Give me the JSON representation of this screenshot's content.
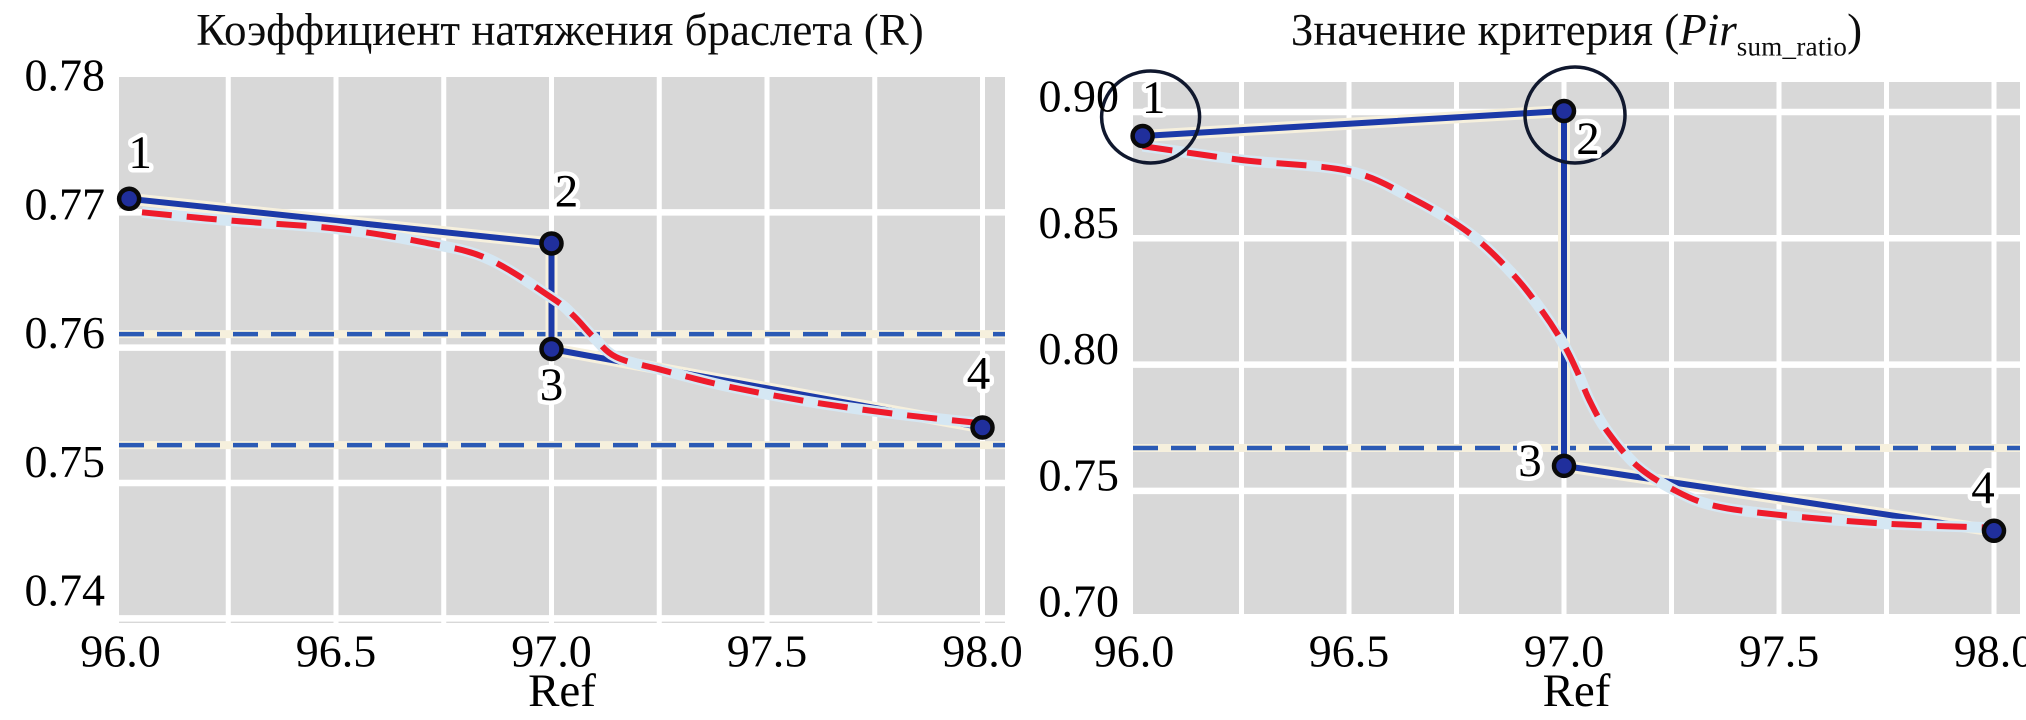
{
  "figure": {
    "background": "#ffffff",
    "panel_color": "#d8d8d8",
    "grid_color": "#ffffff",
    "colors": {
      "path_line": "#1c3aa8",
      "path_halo": "#f6f0dd",
      "marker_fill": "#202f9c",
      "marker_edge": "#0a0a0a",
      "model_curve": "#ee1b2b",
      "model_halo": "#d5e7f3",
      "threshold_line": "#2b5ab4",
      "highlight_circle": "#10182e"
    }
  },
  "chart_data": [
    {
      "type": "line",
      "title": "Коэффициент натяжения браслета (R)",
      "title_parts": {
        "pre": "Коэффициент натяжения браслета (R)",
        "italic": "",
        "sub": "",
        "post": ""
      },
      "xlabel": "Ref",
      "xlim": [
        95.96,
        98.07
      ],
      "ylim": [
        0.7397,
        0.78
      ],
      "x_ticks": [
        96.0,
        96.5,
        97.0,
        97.5,
        98.0
      ],
      "x_tick_labels": [
        "96.0",
        "96.5",
        "97.0",
        "97.5",
        "98.0"
      ],
      "y_ticks": [
        0.78,
        0.77,
        0.76,
        0.75,
        0.74
      ],
      "y_tick_labels": [
        "0.78",
        "0.77",
        "0.76",
        "0.75",
        "0.74"
      ],
      "x_minor_grid_step": 0.25,
      "grid": true,
      "legend": false,
      "series": [
        {
          "name": "optimization steps",
          "style": "solid_line_with_markers",
          "x": [
            96.02,
            97.0,
            97.0,
            98.0
          ],
          "y": [
            0.771,
            0.7677,
            0.7599,
            0.7541
          ],
          "point_labels": [
            "1",
            "2",
            "3",
            "4"
          ]
        },
        {
          "name": "model curve",
          "style": "dashed_curve",
          "points": [
            [
              96.05,
              0.77
            ],
            [
              96.25,
              0.7694
            ],
            [
              96.5,
              0.7688
            ],
            [
              96.7,
              0.7678
            ],
            [
              96.85,
              0.7666
            ],
            [
              97.0,
              0.7637
            ],
            [
              97.05,
              0.7624
            ],
            [
              97.1,
              0.7607
            ],
            [
              97.15,
              0.7593
            ],
            [
              97.25,
              0.7584
            ],
            [
              97.4,
              0.7572
            ],
            [
              97.6,
              0.756
            ],
            [
              97.8,
              0.7551
            ],
            [
              98.0,
              0.7544
            ]
          ]
        },
        {
          "name": "threshold levels",
          "style": "dashed_hlines",
          "values": [
            0.761,
            0.7528
          ]
        }
      ]
    },
    {
      "type": "line",
      "title": "Значение критерия (Pir sum_ratio)",
      "title_parts": {
        "pre": "Значение критерия (",
        "italic": "Pir",
        "sub": "sum_ratio",
        "post": ")"
      },
      "xlabel": "Ref",
      "xlim": [
        95.96,
        98.06
      ],
      "ylim": [
        0.699,
        0.912
      ],
      "x_ticks": [
        96.0,
        96.5,
        97.0,
        97.5,
        98.0
      ],
      "x_tick_labels": [
        "96.0",
        "96.5",
        "97.0",
        "97.5",
        "98.0"
      ],
      "y_ticks": [
        0.9,
        0.85,
        0.8,
        0.75,
        0.7
      ],
      "y_tick_labels": [
        "0.90",
        "0.85",
        "0.80",
        "0.75",
        "0.70"
      ],
      "x_minor_grid_step": 0.25,
      "grid": true,
      "legend": false,
      "series": [
        {
          "name": "optimization steps",
          "style": "solid_line_with_markers",
          "x": [
            96.02,
            97.0,
            97.0,
            98.0
          ],
          "y": [
            0.8905,
            0.9004,
            0.7599,
            0.7342
          ],
          "point_labels": [
            "1",
            "2",
            "3",
            "4"
          ],
          "circled_point_labels": [
            "1",
            "2"
          ]
        },
        {
          "name": "model curve",
          "style": "dashed_curve",
          "points": [
            [
              96.02,
              0.8865
            ],
            [
              96.25,
              0.881
            ],
            [
              96.5,
              0.8766
            ],
            [
              96.65,
              0.8655
            ],
            [
              96.78,
              0.852
            ],
            [
              96.88,
              0.836
            ],
            [
              96.95,
              0.821
            ],
            [
              97.0,
              0.8078
            ],
            [
              97.03,
              0.7975
            ],
            [
              97.06,
              0.7856
            ],
            [
              97.1,
              0.7738
            ],
            [
              97.17,
              0.7599
            ],
            [
              97.26,
              0.75
            ],
            [
              97.35,
              0.7441
            ],
            [
              97.5,
              0.7405
            ],
            [
              97.75,
              0.737
            ],
            [
              98.0,
              0.7354
            ]
          ]
        },
        {
          "name": "threshold level",
          "style": "dashed_hlines",
          "values": [
            0.767
          ]
        }
      ]
    }
  ]
}
